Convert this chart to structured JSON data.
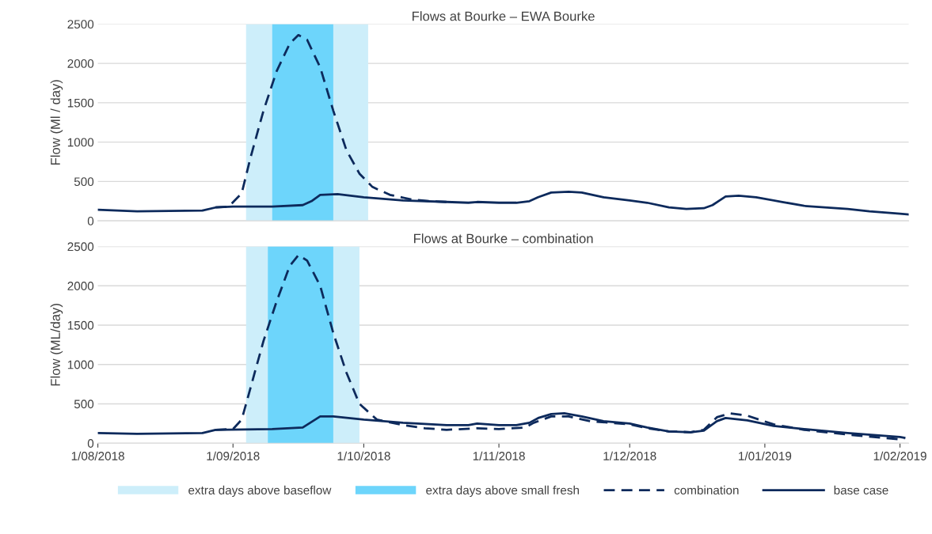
{
  "chart_data": [
    {
      "type": "line",
      "title": "Flows at Bourke – EWA Bourke",
      "ylabel": "Flow (Ml / day)",
      "xlim": [
        "2018-08-01",
        "2019-02-03"
      ],
      "ylim": [
        0,
        2500
      ],
      "yticks": [
        0,
        500,
        1000,
        1500,
        2000,
        2500
      ],
      "grid": "y",
      "tick_labels": "y",
      "bands": [
        {
          "axis": "x",
          "from": "2018-09-04",
          "to": "2018-10-02",
          "color": "#cdeefa"
        },
        {
          "axis": "x",
          "from": "2018-09-10",
          "to": "2018-09-24",
          "color": "#6dd5fb"
        }
      ],
      "series": [
        {
          "color": "#0d2a5c",
          "line_style": "dashed",
          "x": [
            "2018-08-28",
            "2018-08-31",
            "2018-09-03",
            "2018-09-05",
            "2018-09-08",
            "2018-09-11",
            "2018-09-14",
            "2018-09-16",
            "2018-09-18",
            "2018-09-21",
            "2018-09-24",
            "2018-09-27",
            "2018-09-30",
            "2018-10-03",
            "2018-10-07",
            "2018-10-12",
            "2018-10-16",
            "2018-10-20"
          ],
          "values": [
            170,
            180,
            350,
            800,
            1400,
            1900,
            2250,
            2360,
            2300,
            1950,
            1400,
            900,
            600,
            430,
            330,
            270,
            250,
            240
          ]
        },
        {
          "color": "#0d2a5c",
          "line_style": "solid",
          "x": [
            "2018-08-01",
            "2018-08-10",
            "2018-08-25",
            "2018-08-28",
            "2018-09-01",
            "2018-09-10",
            "2018-09-17",
            "2018-09-19",
            "2018-09-21",
            "2018-09-25",
            "2018-10-01",
            "2018-10-10",
            "2018-10-20",
            "2018-10-25",
            "2018-10-27",
            "2018-11-01",
            "2018-11-05",
            "2018-11-08",
            "2018-11-10",
            "2018-11-13",
            "2018-11-17",
            "2018-11-20",
            "2018-11-25",
            "2018-12-01",
            "2018-12-05",
            "2018-12-10",
            "2018-12-14",
            "2018-12-18",
            "2018-12-20",
            "2018-12-23",
            "2018-12-26",
            "2018-12-30",
            "2019-01-05",
            "2019-01-10",
            "2019-01-20",
            "2019-01-25",
            "2019-02-01",
            "2019-02-03"
          ],
          "values": [
            140,
            120,
            130,
            170,
            180,
            180,
            200,
            250,
            330,
            340,
            300,
            260,
            240,
            230,
            240,
            230,
            230,
            250,
            300,
            360,
            370,
            360,
            300,
            260,
            230,
            170,
            150,
            160,
            200,
            310,
            320,
            300,
            240,
            190,
            150,
            120,
            90,
            80
          ]
        }
      ]
    },
    {
      "type": "line",
      "title": "Flows at Bourke – combination",
      "ylabel": "Flow (ML/day)",
      "xlim": [
        "2018-08-01",
        "2019-02-03"
      ],
      "xticks": [
        {
          "value": "2018-08-01",
          "label": "1/08/2018"
        },
        {
          "value": "2018-09-01",
          "label": "1/09/2018"
        },
        {
          "value": "2018-10-01",
          "label": "1/10/2018"
        },
        {
          "value": "2018-11-01",
          "label": "1/11/2018"
        },
        {
          "value": "2018-12-01",
          "label": "1/12/2018"
        },
        {
          "value": "2019-01-01",
          "label": "1/01/2019"
        },
        {
          "value": "2019-02-01",
          "label": "1/02/2019"
        }
      ],
      "ylim": [
        0,
        2500
      ],
      "yticks": [
        0,
        500,
        1000,
        1500,
        2000,
        2500
      ],
      "grid": "y",
      "legend": "bottom",
      "bands": [
        {
          "axis": "x",
          "from": "2018-09-04",
          "to": "2018-09-30",
          "label": "extra days above baseflow",
          "color": "#cdeefa"
        },
        {
          "axis": "x",
          "from": "2018-09-09",
          "to": "2018-09-24",
          "label": "extra days above small fresh",
          "color": "#6dd5fb"
        }
      ],
      "series": [
        {
          "name": "combination",
          "color": "#0d2a5c",
          "line_style": "dashed",
          "x": [
            "2018-08-28",
            "2018-09-01",
            "2018-09-03",
            "2018-09-05",
            "2018-09-08",
            "2018-09-11",
            "2018-09-14",
            "2018-09-16",
            "2018-09-18",
            "2018-09-21",
            "2018-09-24",
            "2018-09-27",
            "2018-09-30",
            "2018-10-04",
            "2018-10-10",
            "2018-10-15",
            "2018-10-20",
            "2018-10-27",
            "2018-11-01",
            "2018-11-07",
            "2018-11-09",
            "2018-11-13",
            "2018-11-17",
            "2018-11-22",
            "2018-12-01",
            "2018-12-05",
            "2018-12-10",
            "2018-12-15",
            "2018-12-18",
            "2018-12-21",
            "2018-12-24",
            "2018-12-28",
            "2019-01-03",
            "2019-01-10",
            "2019-01-20",
            "2019-02-01",
            "2019-02-02"
          ],
          "values": [
            170,
            180,
            300,
            700,
            1300,
            1800,
            2250,
            2390,
            2320,
            2000,
            1400,
            900,
            500,
            300,
            230,
            190,
            170,
            190,
            180,
            200,
            260,
            340,
            340,
            280,
            240,
            190,
            150,
            140,
            170,
            330,
            380,
            350,
            240,
            170,
            110,
            50,
            60
          ]
        },
        {
          "name": "base case",
          "color": "#0d2a5c",
          "line_style": "solid",
          "x": [
            "2018-08-01",
            "2018-08-10",
            "2018-08-25",
            "2018-08-28",
            "2018-09-10",
            "2018-09-17",
            "2018-09-21",
            "2018-09-24",
            "2018-10-01",
            "2018-10-10",
            "2018-10-20",
            "2018-10-25",
            "2018-10-27",
            "2018-11-01",
            "2018-11-05",
            "2018-11-08",
            "2018-11-10",
            "2018-11-13",
            "2018-11-16",
            "2018-11-20",
            "2018-11-25",
            "2018-12-01",
            "2018-12-05",
            "2018-12-10",
            "2018-12-15",
            "2018-12-18",
            "2018-12-21",
            "2018-12-23",
            "2018-12-28",
            "2019-01-03",
            "2019-01-10",
            "2019-01-20",
            "2019-02-01",
            "2019-02-02"
          ],
          "values": [
            130,
            120,
            130,
            170,
            180,
            200,
            340,
            340,
            300,
            260,
            230,
            230,
            250,
            230,
            230,
            260,
            320,
            370,
            380,
            340,
            280,
            250,
            200,
            150,
            140,
            160,
            280,
            320,
            290,
            220,
            180,
            130,
            80,
            70
          ]
        }
      ]
    }
  ]
}
